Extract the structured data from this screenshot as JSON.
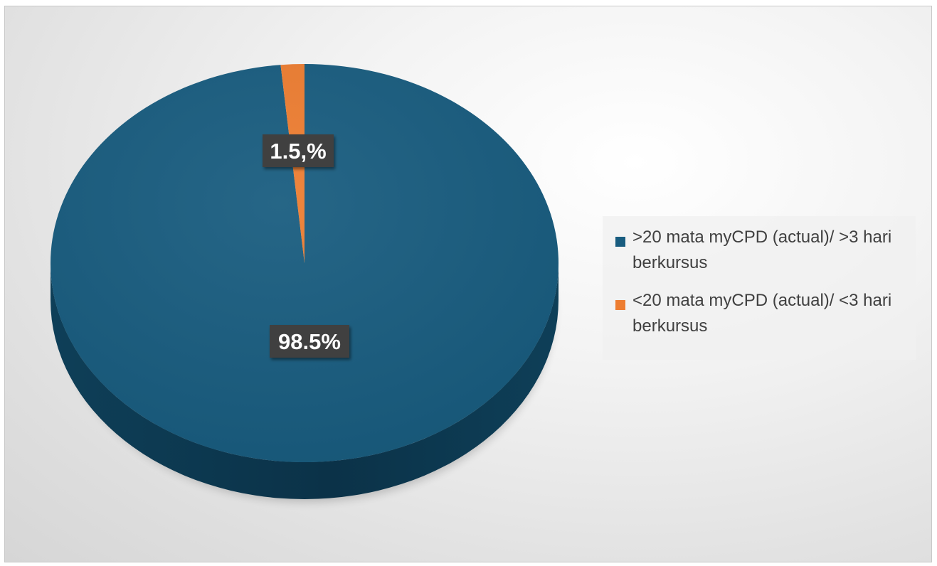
{
  "chart_data": {
    "type": "pie",
    "style": "3d",
    "title": "",
    "slices": [
      {
        "label": ">20 mata myCPD (actual)/ >3 hari berkursus",
        "value": 98.5,
        "data_label": "98.5%",
        "color": "#185C7F",
        "side_color": "#0E3F58"
      },
      {
        "label": "<20 mata myCPD (actual)/ <3 hari berkursus",
        "value": 1.5,
        "data_label": "1.5,%",
        "color": "#ED7D31",
        "side_color": "#B35A1E"
      }
    ],
    "legend_position": "right",
    "data_label_background": "#404040"
  }
}
